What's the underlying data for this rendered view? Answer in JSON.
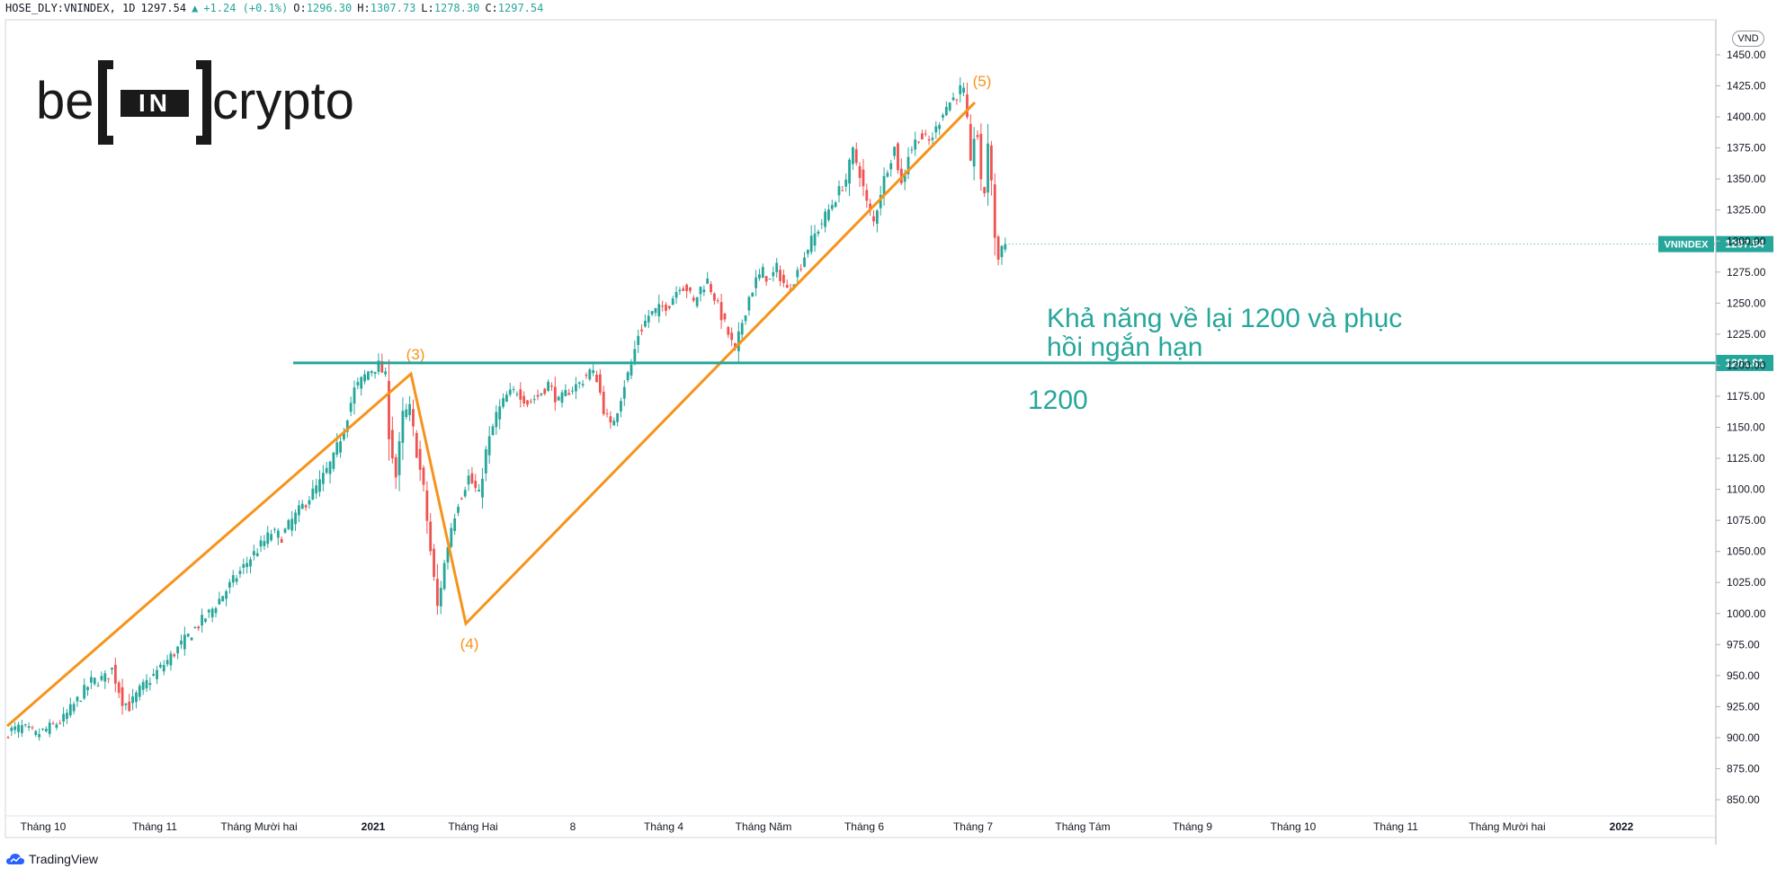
{
  "header": {
    "symbol": "HOSE_DLY:VNINDEX, 1D",
    "last": "1297.54",
    "change": "+1.24 (+0.1%)",
    "open_label": "O:",
    "open": "1296.30",
    "high_label": "H:",
    "high": "1307.73",
    "low_label": "L:",
    "low": "1278.30",
    "close_label": "C:",
    "close": "1297.54"
  },
  "logo": {
    "left": "be",
    "middle": "IN",
    "right": "crypto"
  },
  "footer": {
    "brand": "TradingView"
  },
  "price_axis": {
    "unit": "VND"
  },
  "annotation": {
    "line1": "Khả năng về lại 1200 và phục",
    "line2": "hồi ngắn hạn",
    "level_text": "1200"
  },
  "colors": {
    "up": "#26a69a",
    "down": "#ef5350",
    "wave": "#f7931a",
    "level": "#26a69a",
    "grid": "#e0e3eb"
  },
  "chart_data": {
    "type": "candlestick",
    "title": "",
    "ylim": [
      840,
      1470
    ],
    "y_ticks": [
      850,
      875,
      900,
      925,
      950,
      975,
      1000,
      1025,
      1050,
      1075,
      1100,
      1125,
      1150,
      1175,
      1200,
      1225,
      1250,
      1275,
      1300,
      1325,
      1350,
      1375,
      1400,
      1425,
      1450
    ],
    "x_ticks": [
      "Tháng 10",
      "Tháng 11",
      "Tháng Mười hai",
      "2021",
      "Tháng Hai",
      "8",
      "Tháng 4",
      "Tháng Năm",
      "Tháng 6",
      "Tháng 7",
      "Tháng Tám",
      "Tháng 9",
      "Tháng 10",
      "Tháng 11",
      "Tháng Mười hai",
      "2022"
    ],
    "last_price_label": {
      "name": "VNINDEX",
      "value": "1297.54",
      "price": 1297.54
    },
    "level_line": {
      "value": 1201.81,
      "label": "1201.81"
    },
    "waves": [
      {
        "label": "(3)",
        "value": 1200
      },
      {
        "label": "(4)",
        "value": 1000
      },
      {
        "label": "(5)",
        "value": 1420
      }
    ],
    "anchors": [
      [
        0,
        905
      ],
      [
        4,
        908
      ],
      [
        8,
        902
      ],
      [
        12,
        908
      ],
      [
        16,
        915
      ],
      [
        20,
        930
      ],
      [
        24,
        945
      ],
      [
        28,
        948
      ],
      [
        30,
        955
      ],
      [
        33,
        930
      ],
      [
        35,
        925
      ],
      [
        38,
        938
      ],
      [
        42,
        950
      ],
      [
        46,
        962
      ],
      [
        50,
        975
      ],
      [
        54,
        988
      ],
      [
        58,
        1000
      ],
      [
        62,
        1015
      ],
      [
        66,
        1030
      ],
      [
        70,
        1045
      ],
      [
        74,
        1058
      ],
      [
        76,
        1065
      ],
      [
        79,
        1062
      ],
      [
        82,
        1075
      ],
      [
        86,
        1090
      ],
      [
        90,
        1105
      ],
      [
        94,
        1125
      ],
      [
        97,
        1150
      ],
      [
        100,
        1180
      ],
      [
        104,
        1195
      ],
      [
        107,
        1200
      ],
      [
        109,
        1190
      ],
      [
        110,
        1145
      ],
      [
        112,
        1110
      ],
      [
        114,
        1160
      ],
      [
        116,
        1165
      ],
      [
        118,
        1130
      ],
      [
        120,
        1100
      ],
      [
        122,
        1050
      ],
      [
        124,
        1005
      ],
      [
        126,
        1040
      ],
      [
        128,
        1070
      ],
      [
        130,
        1090
      ],
      [
        133,
        1110
      ],
      [
        136,
        1095
      ],
      [
        138,
        1130
      ],
      [
        141,
        1160
      ],
      [
        144,
        1175
      ],
      [
        147,
        1180
      ],
      [
        150,
        1170
      ],
      [
        153,
        1175
      ],
      [
        156,
        1185
      ],
      [
        159,
        1170
      ],
      [
        162,
        1180
      ],
      [
        165,
        1185
      ],
      [
        168,
        1195
      ],
      [
        170,
        1190
      ],
      [
        172,
        1165
      ],
      [
        174,
        1150
      ],
      [
        176,
        1165
      ],
      [
        178,
        1185
      ],
      [
        180,
        1200
      ],
      [
        182,
        1225
      ],
      [
        185,
        1240
      ],
      [
        188,
        1245
      ],
      [
        191,
        1250
      ],
      [
        194,
        1265
      ],
      [
        196,
        1262
      ],
      [
        198,
        1250
      ],
      [
        200,
        1262
      ],
      [
        202,
        1268
      ],
      [
        204,
        1255
      ],
      [
        206,
        1240
      ],
      [
        208,
        1225
      ],
      [
        210,
        1210
      ],
      [
        212,
        1235
      ],
      [
        214,
        1255
      ],
      [
        216,
        1268
      ],
      [
        218,
        1275
      ],
      [
        220,
        1268
      ],
      [
        222,
        1278
      ],
      [
        225,
        1260
      ],
      [
        228,
        1275
      ],
      [
        231,
        1295
      ],
      [
        234,
        1310
      ],
      [
        237,
        1325
      ],
      [
        240,
        1340
      ],
      [
        242,
        1350
      ],
      [
        244,
        1372
      ],
      [
        246,
        1355
      ],
      [
        248,
        1330
      ],
      [
        250,
        1315
      ],
      [
        252,
        1340
      ],
      [
        254,
        1360
      ],
      [
        256,
        1375
      ],
      [
        258,
        1345
      ],
      [
        260,
        1370
      ],
      [
        263,
        1385
      ],
      [
        266,
        1380
      ],
      [
        268,
        1390
      ],
      [
        270,
        1405
      ],
      [
        272,
        1412
      ],
      [
        274,
        1418
      ],
      [
        275,
        1422
      ],
      [
        276,
        1420
      ],
      [
        277,
        1395
      ],
      [
        278,
        1360
      ],
      [
        279,
        1385
      ],
      [
        280,
        1385
      ],
      [
        281,
        1345
      ],
      [
        282,
        1340
      ],
      [
        283,
        1380
      ],
      [
        284,
        1345
      ],
      [
        285,
        1305
      ],
      [
        286,
        1285
      ],
      [
        287,
        1296
      ],
      [
        288,
        1297.54
      ]
    ]
  }
}
